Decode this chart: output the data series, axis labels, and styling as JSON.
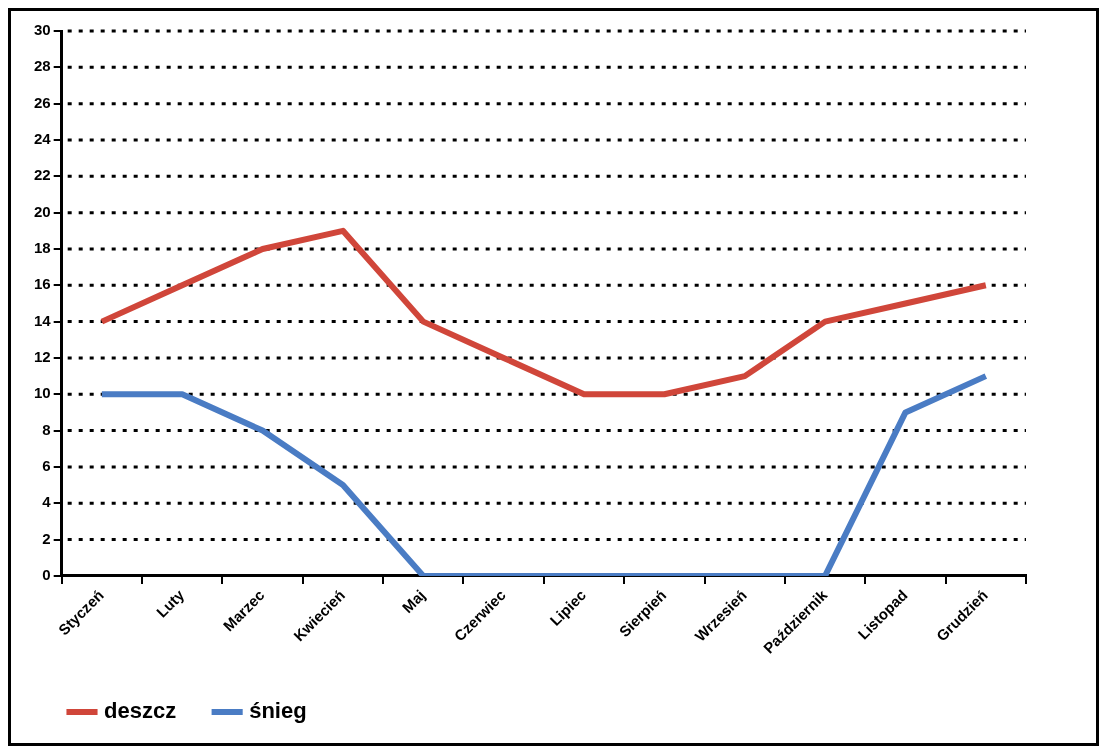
{
  "chart_data": {
    "type": "line",
    "categories": [
      "Styczeń",
      "Luty",
      "Marzec",
      "Kwiecień",
      "Maj",
      "Czerwiec",
      "Lipiec",
      "Sierpień",
      "Wrzesień",
      "Październik",
      "Listopad",
      "Grudzień"
    ],
    "series": [
      {
        "name": "deszcz",
        "color": "#d0463a",
        "values": [
          14,
          16,
          18,
          19,
          14,
          12,
          10,
          10,
          11,
          14,
          15,
          16
        ]
      },
      {
        "name": "śnieg",
        "color": "#4a7cc4",
        "values": [
          10,
          10,
          8,
          5,
          0,
          0,
          0,
          0,
          0,
          0,
          9,
          11
        ]
      }
    ],
    "ylim": [
      0,
      30
    ],
    "yticks": [
      0,
      2,
      4,
      6,
      8,
      10,
      12,
      14,
      16,
      18,
      20,
      22,
      24,
      26,
      28,
      30
    ],
    "grid": "y",
    "legend": "bottom",
    "marker": "none",
    "line_style": "solid"
  }
}
